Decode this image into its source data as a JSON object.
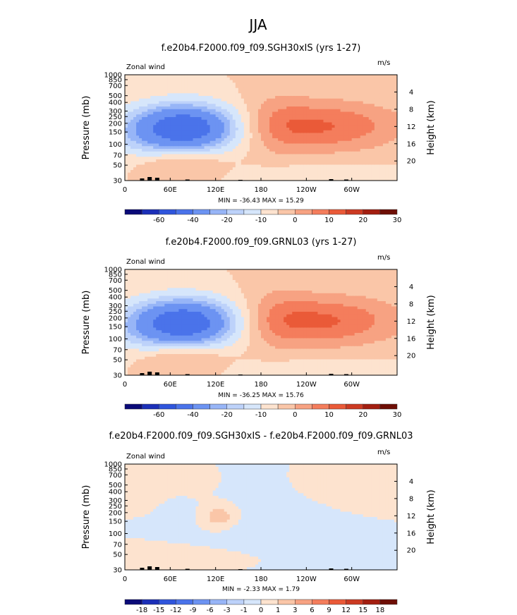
{
  "page_title": "JJA",
  "colors": {
    "ocean": "#cfe3fb",
    "terrain": "#000000",
    "frame": "#000000"
  },
  "chart_data": [
    {
      "type": "contour-map",
      "title": "f.e20b4.F2000.f09_f09.SGH30xIS (yrs 1-27)",
      "left_annotation": "Zonal wind",
      "right_annotation": "m/s",
      "ylabel": "Pressure (mb)",
      "y2label": "Height (km)",
      "x_ticks": [
        "0",
        "60E",
        "120E",
        "180",
        "120W",
        "60W"
      ],
      "x_range": [
        0,
        360
      ],
      "p_ticks": [
        "30",
        "50",
        "70",
        "100",
        "150",
        "200",
        "250",
        "300",
        "400",
        "500",
        "700",
        "850",
        "1000"
      ],
      "p_range": [
        1000,
        30
      ],
      "height_ticks": [
        "4",
        "8",
        "12",
        "16",
        "20"
      ],
      "stats": "MIN = -36.43   MAX =  15.29",
      "min": -36.43,
      "max": 15.29,
      "blobs": [
        {
          "lon": 80,
          "p": 170,
          "sx": 50,
          "sy": 0.55,
          "amp": -36.43
        },
        {
          "lon": 260,
          "p": 165,
          "sx": 75,
          "sy": 0.6,
          "amp": 15.29
        },
        {
          "lon": 75,
          "p": 550,
          "sx": 40,
          "sy": 0.35,
          "amp": 9
        },
        {
          "lon": 200,
          "p": 150,
          "sx": 30,
          "sy": 0.9,
          "amp": 4
        },
        {
          "lon": 260,
          "p": 800,
          "sx": 80,
          "sy": 0.25,
          "amp": -4
        },
        {
          "lon": 40,
          "p": 250,
          "sx": 70,
          "sy": 0.6,
          "amp": -6
        }
      ],
      "colorbar": {
        "labels": [
          "-60",
          "-40",
          "-20",
          "-10",
          "0",
          "10",
          "20",
          "30"
        ],
        "levels": [
          -70,
          -60,
          -50,
          -40,
          -30,
          -20,
          -15,
          -10,
          -5,
          0,
          5,
          10,
          15,
          20,
          25,
          30
        ],
        "colors": [
          "#0a0a78",
          "#1b2fb8",
          "#2f55dc",
          "#4a73ea",
          "#6c93f2",
          "#97b5f7",
          "#bdd2fa",
          "#d6e6fb",
          "#fde3cf",
          "#fac6a8",
          "#f7a282",
          "#f47d5c",
          "#ea5a38",
          "#cc3a22",
          "#a31e10",
          "#6e0e05"
        ]
      }
    },
    {
      "type": "contour-map",
      "title": "f.e20b4.F2000.f09_f09.GRNL03 (yrs 1-27)",
      "left_annotation": "Zonal wind",
      "right_annotation": "m/s",
      "ylabel": "Pressure (mb)",
      "y2label": "Height (km)",
      "x_ticks": [
        "0",
        "60E",
        "120E",
        "180",
        "120W",
        "60W"
      ],
      "x_range": [
        0,
        360
      ],
      "p_ticks": [
        "30",
        "50",
        "70",
        "100",
        "150",
        "200",
        "250",
        "300",
        "400",
        "500",
        "700",
        "850",
        "1000"
      ],
      "p_range": [
        1000,
        30
      ],
      "height_ticks": [
        "4",
        "8",
        "12",
        "16",
        "20"
      ],
      "stats": "MIN = -36.25   MAX =  15.76",
      "min": -36.25,
      "max": 15.76,
      "blobs": [
        {
          "lon": 80,
          "p": 170,
          "sx": 50,
          "sy": 0.55,
          "amp": -36.25
        },
        {
          "lon": 260,
          "p": 165,
          "sx": 75,
          "sy": 0.6,
          "amp": 15.76
        },
        {
          "lon": 75,
          "p": 550,
          "sx": 40,
          "sy": 0.35,
          "amp": 9
        },
        {
          "lon": 200,
          "p": 150,
          "sx": 30,
          "sy": 0.9,
          "amp": 4
        },
        {
          "lon": 260,
          "p": 800,
          "sx": 80,
          "sy": 0.25,
          "amp": -4
        },
        {
          "lon": 40,
          "p": 250,
          "sx": 70,
          "sy": 0.6,
          "amp": -6
        }
      ],
      "colorbar": {
        "labels": [
          "-60",
          "-40",
          "-20",
          "-10",
          "0",
          "10",
          "20",
          "30"
        ],
        "levels": [
          -70,
          -60,
          -50,
          -40,
          -30,
          -20,
          -15,
          -10,
          -5,
          0,
          5,
          10,
          15,
          20,
          25,
          30
        ],
        "colors": [
          "#0a0a78",
          "#1b2fb8",
          "#2f55dc",
          "#4a73ea",
          "#6c93f2",
          "#97b5f7",
          "#bdd2fa",
          "#d6e6fb",
          "#fde3cf",
          "#fac6a8",
          "#f7a282",
          "#f47d5c",
          "#ea5a38",
          "#cc3a22",
          "#a31e10",
          "#6e0e05"
        ]
      }
    },
    {
      "type": "contour-map",
      "title": "f.e20b4.F2000.f09_f09.SGH30xIS - f.e20b4.F2000.f09_f09.GRNL03",
      "left_annotation": "Zonal wind",
      "right_annotation": "m/s",
      "ylabel": "Pressure (mb)",
      "y2label": "Height (km)",
      "x_ticks": [
        "0",
        "60E",
        "120E",
        "180",
        "120W",
        "60W"
      ],
      "x_range": [
        0,
        360
      ],
      "p_ticks": [
        "30",
        "50",
        "70",
        "100",
        "150",
        "200",
        "250",
        "300",
        "400",
        "500",
        "700",
        "850",
        "1000"
      ],
      "p_range": [
        1000,
        30
      ],
      "height_ticks": [
        "4",
        "8",
        "12",
        "16",
        "20"
      ],
      "stats": "MIN =  -2.33   MAX =   1.79",
      "min": -2.33,
      "max": 1.79,
      "blobs": [
        {
          "lon": 125,
          "p": 170,
          "sx": 15,
          "sy": 0.25,
          "amp": 1.79
        },
        {
          "lon": 240,
          "p": 300,
          "sx": 70,
          "sy": 0.9,
          "amp": -0.9
        },
        {
          "lon": 70,
          "p": 150,
          "sx": 12,
          "sy": 0.3,
          "amp": -0.8
        },
        {
          "lon": 30,
          "p": 60,
          "sx": 40,
          "sy": 0.35,
          "amp": 0.6
        },
        {
          "lon": 300,
          "p": 100,
          "sx": 60,
          "sy": 0.6,
          "amp": 0.6
        },
        {
          "lon": 120,
          "p": 700,
          "sx": 80,
          "sy": 0.25,
          "amp": 0.5
        }
      ],
      "colorbar": {
        "labels": [
          "-18",
          "-15",
          "-12",
          "-9",
          "-6",
          "-3",
          "-1",
          "0",
          "1",
          "3",
          "6",
          "9",
          "12",
          "15",
          "18"
        ],
        "levels": [
          -21,
          -18,
          -15,
          -12,
          -9,
          -6,
          -3,
          -1,
          0,
          1,
          3,
          6,
          9,
          12,
          15,
          18
        ],
        "colors": [
          "#0a0a78",
          "#1b2fb8",
          "#2f55dc",
          "#4a73ea",
          "#6c93f2",
          "#97b5f7",
          "#bdd2fa",
          "#d6e6fb",
          "#fde3cf",
          "#fac6a8",
          "#f7a282",
          "#f47d5c",
          "#ea5a38",
          "#cc3a22",
          "#a31e10",
          "#6e0e05"
        ]
      }
    }
  ]
}
